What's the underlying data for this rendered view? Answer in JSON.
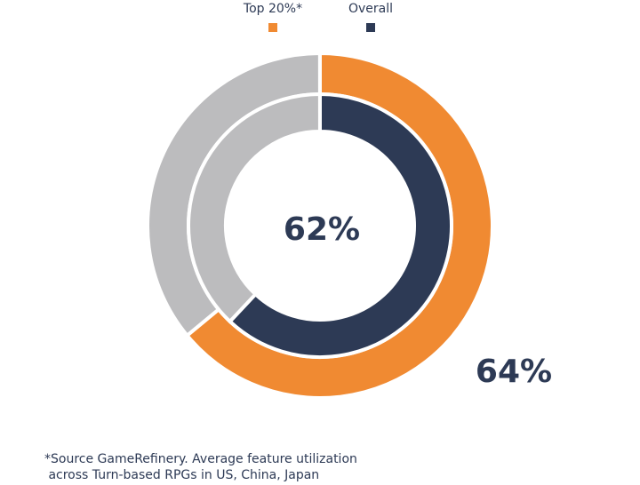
{
  "colors": {
    "top20": "#f08a32",
    "overall": "#2d3a55",
    "remainder": "#bcbcbe",
    "text": "#2d3a55"
  },
  "legend": {
    "top20_label": "Top 20%*",
    "overall_label": "Overall"
  },
  "chart_data": {
    "type": "pie",
    "title": "",
    "series": [
      {
        "name": "Top 20%*",
        "ring": "outer",
        "value": 64,
        "label": "64%"
      },
      {
        "name": "Overall",
        "ring": "inner",
        "value": 62,
        "label": "62%"
      }
    ],
    "max": 100,
    "legend_position": "top-center"
  },
  "footnote": {
    "line1": "*Source GameRefinery. Average feature utilization",
    "line2": " across Turn-based RPGs in US, China, Japan"
  }
}
